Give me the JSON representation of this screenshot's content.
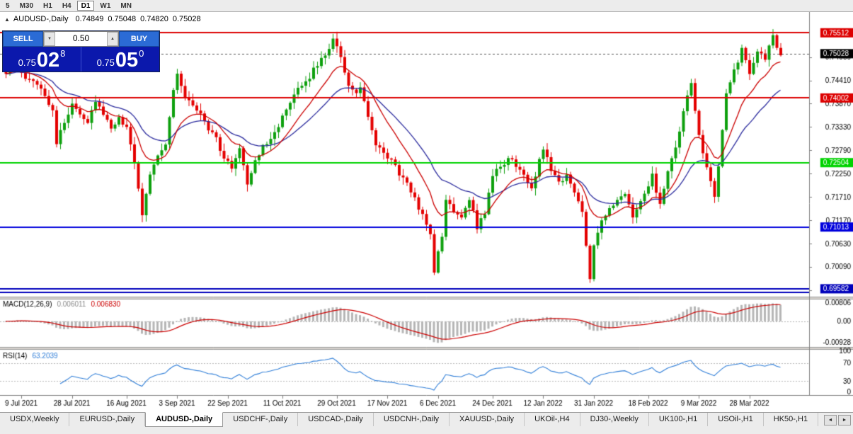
{
  "toolbar": {
    "timeframes": [
      {
        "label": "5",
        "active": false
      },
      {
        "label": "M30",
        "active": false
      },
      {
        "label": "H1",
        "active": false
      },
      {
        "label": "H4",
        "active": false
      },
      {
        "label": "D1",
        "active": true
      },
      {
        "label": "W1",
        "active": false
      },
      {
        "label": "MN",
        "active": false
      }
    ]
  },
  "chart_header": {
    "collapse_icon": "▲",
    "symbol": "AUDUSD-,Daily",
    "open": "0.74849",
    "high": "0.75048",
    "low": "0.74820",
    "close": "0.75028"
  },
  "trade_widget": {
    "sell_label": "SELL",
    "buy_label": "BUY",
    "volume": "0.50",
    "volume_down_icon": "▼",
    "volume_up_icon": "▲",
    "sell_price_small": "0.75",
    "sell_price_big": "02",
    "sell_price_sup": "8",
    "buy_price_small": "0.75",
    "buy_price_big": "05",
    "buy_price_sup": "0"
  },
  "chart_data": {
    "type": "candlestick",
    "title": "AUDUSD-,Daily",
    "ohlc_display": {
      "open": "0.74849",
      "high": "0.75048",
      "low": "0.74820",
      "close": "0.75028"
    },
    "y_range": {
      "top": 0.7596,
      "bottom": 0.694
    },
    "y_axis_labels": [
      "0.74950",
      "0.74410",
      "0.73870",
      "0.73330",
      "0.72790",
      "0.72250",
      "0.71710",
      "0.71170",
      "0.70630",
      "0.70090",
      "0.69550"
    ],
    "x_axis_labels": [
      {
        "label": "9 Jul 2021",
        "index": 4
      },
      {
        "label": "28 Jul 2021",
        "index": 17
      },
      {
        "label": "16 Aug 2021",
        "index": 31
      },
      {
        "label": "3 Sep 2021",
        "index": 44
      },
      {
        "label": "22 Sep 2021",
        "index": 57
      },
      {
        "label": "11 Oct 2021",
        "index": 71
      },
      {
        "label": "29 Oct 2021",
        "index": 85
      },
      {
        "label": "17 Nov 2021",
        "index": 98
      },
      {
        "label": "6 Dec 2021",
        "index": 111
      },
      {
        "label": "24 Dec 2021",
        "index": 125
      },
      {
        "label": "12 Jan 2022",
        "index": 138
      },
      {
        "label": "31 Jan 2022",
        "index": 151
      },
      {
        "label": "18 Feb 2022",
        "index": 165
      },
      {
        "label": "9 Mar 2022",
        "index": 178
      },
      {
        "label": "28 Mar 2022",
        "index": 191
      }
    ],
    "num_candles": 200,
    "price_path_anchors": [
      [
        0,
        0.7462
      ],
      [
        3,
        0.7478
      ],
      [
        5,
        0.7441
      ],
      [
        8,
        0.7436
      ],
      [
        10,
        0.7408
      ],
      [
        12,
        0.7372
      ],
      [
        13,
        0.7298
      ],
      [
        15,
        0.7342
      ],
      [
        17,
        0.739
      ],
      [
        19,
        0.7366
      ],
      [
        21,
        0.7344
      ],
      [
        23,
        0.7396
      ],
      [
        25,
        0.7358
      ],
      [
        27,
        0.733
      ],
      [
        29,
        0.735
      ],
      [
        31,
        0.7336
      ],
      [
        33,
        0.7244
      ],
      [
        35,
        0.7132
      ],
      [
        37,
        0.7228
      ],
      [
        39,
        0.7266
      ],
      [
        41,
        0.7296
      ],
      [
        43,
        0.7418
      ],
      [
        44,
        0.7455
      ],
      [
        46,
        0.7404
      ],
      [
        48,
        0.738
      ],
      [
        50,
        0.7366
      ],
      [
        52,
        0.733
      ],
      [
        54,
        0.7306
      ],
      [
        56,
        0.726
      ],
      [
        58,
        0.7238
      ],
      [
        60,
        0.7288
      ],
      [
        62,
        0.7204
      ],
      [
        64,
        0.725
      ],
      [
        66,
        0.7288
      ],
      [
        68,
        0.731
      ],
      [
        70,
        0.7338
      ],
      [
        73,
        0.7386
      ],
      [
        75,
        0.7418
      ],
      [
        77,
        0.7438
      ],
      [
        79,
        0.7464
      ],
      [
        81,
        0.749
      ],
      [
        83,
        0.7516
      ],
      [
        84,
        0.7542
      ],
      [
        86,
        0.7498
      ],
      [
        88,
        0.7428
      ],
      [
        90,
        0.7406
      ],
      [
        91,
        0.7426
      ],
      [
        93,
        0.7358
      ],
      [
        95,
        0.7288
      ],
      [
        97,
        0.727
      ],
      [
        99,
        0.7256
      ],
      [
        101,
        0.7226
      ],
      [
        103,
        0.7198
      ],
      [
        105,
        0.717
      ],
      [
        107,
        0.7126
      ],
      [
        109,
        0.7088
      ],
      [
        110,
        0.7
      ],
      [
        112,
        0.7078
      ],
      [
        113,
        0.7165
      ],
      [
        115,
        0.714
      ],
      [
        117,
        0.7126
      ],
      [
        119,
        0.717
      ],
      [
        121,
        0.71
      ],
      [
        123,
        0.7136
      ],
      [
        125,
        0.722
      ],
      [
        127,
        0.724
      ],
      [
        129,
        0.726
      ],
      [
        131,
        0.7246
      ],
      [
        133,
        0.722
      ],
      [
        135,
        0.7186
      ],
      [
        137,
        0.7258
      ],
      [
        138,
        0.7285
      ],
      [
        140,
        0.7236
      ],
      [
        142,
        0.7206
      ],
      [
        144,
        0.722
      ],
      [
        146,
        0.718
      ],
      [
        148,
        0.714
      ],
      [
        150,
        0.6986
      ],
      [
        151,
        0.706
      ],
      [
        153,
        0.712
      ],
      [
        155,
        0.714
      ],
      [
        157,
        0.716
      ],
      [
        159,
        0.7176
      ],
      [
        161,
        0.7126
      ],
      [
        163,
        0.716
      ],
      [
        165,
        0.719
      ],
      [
        166,
        0.722
      ],
      [
        168,
        0.715
      ],
      [
        170,
        0.723
      ],
      [
        172,
        0.728
      ],
      [
        174,
        0.737
      ],
      [
        176,
        0.743
      ],
      [
        178,
        0.7316
      ],
      [
        180,
        0.724
      ],
      [
        182,
        0.7166
      ],
      [
        184,
        0.732
      ],
      [
        185,
        0.741
      ],
      [
        187,
        0.7466
      ],
      [
        189,
        0.751
      ],
      [
        191,
        0.746
      ],
      [
        193,
        0.751
      ],
      [
        195,
        0.7494
      ],
      [
        197,
        0.754
      ],
      [
        198,
        0.7512
      ],
      [
        199,
        0.7503
      ]
    ],
    "horizontal_lines": [
      {
        "price": 0.75512,
        "label": "0.75512",
        "color": "#dd0000",
        "width": 2
      },
      {
        "price": 0.74002,
        "label": "0.74002",
        "color": "#dd0000",
        "width": 2
      },
      {
        "price": 0.72504,
        "label": "0.72504",
        "color": "#00d300",
        "width": 2
      },
      {
        "price": 0.71013,
        "label": "0.71013",
        "color": "#0000dd",
        "width": 2
      },
      {
        "price": 0.69582,
        "label": "0.69582",
        "color": "#0000bb",
        "width": 2
      },
      {
        "price": 0.695,
        "label": "",
        "color": "#0000bb",
        "width": 2
      }
    ],
    "current_price": {
      "price": 0.75028,
      "label": "0.75028",
      "color": "#000000"
    },
    "moving_averages": [
      {
        "period": 26,
        "color": "#2b2b9e"
      },
      {
        "period": 12,
        "color": "#cc0000"
      }
    ],
    "indicators": {
      "macd": {
        "name": "MACD(12,26,9)",
        "main_value": "0.006011",
        "signal_value": "0.006830",
        "scale_max": 0.00806,
        "scale_min": -0.00928,
        "axis_labels": [
          "0.00806",
          "0.00",
          "-0.00928"
        ],
        "histogram_color": "#b6b6b6",
        "signal_color": "#cc0000",
        "main_value_color": "#8a8a8a"
      },
      "rsi": {
        "name": "RSI(14)",
        "value": "63.2039",
        "period": 14,
        "levels": [
          70,
          30
        ],
        "axis_labels": [
          "100",
          "70",
          "30",
          "0"
        ],
        "line_color": "#2f7ed8"
      }
    },
    "candle_colors": {
      "up": "#0ea00e",
      "down": "#e40000"
    }
  },
  "tab_bar": {
    "scroll_left_icon": "◄",
    "scroll_right_icon": "►",
    "tabs": [
      {
        "label": "USDX,Weekly",
        "active": false
      },
      {
        "label": "EURUSD-,Daily",
        "active": false
      },
      {
        "label": "AUDUSD-,Daily",
        "active": true
      },
      {
        "label": "USDCHF-,Daily",
        "active": false
      },
      {
        "label": "USDCAD-,Daily",
        "active": false
      },
      {
        "label": "USDCNH-,Daily",
        "active": false
      },
      {
        "label": "XAUUSD-,Daily",
        "active": false
      },
      {
        "label": "UKOil-,H4",
        "active": false
      },
      {
        "label": "DJ30-,Weekly",
        "active": false
      },
      {
        "label": "UK100-,H1",
        "active": false
      },
      {
        "label": "USOil-,H1",
        "active": false
      },
      {
        "label": "HK50-,H1",
        "active": false
      }
    ]
  }
}
